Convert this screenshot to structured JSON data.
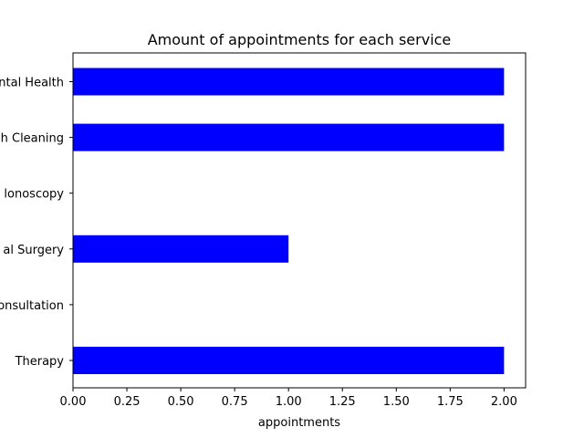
{
  "chart_data": {
    "type": "bar",
    "orientation": "horizontal",
    "title": "Amount of appointments for each service",
    "xlabel": "appointments",
    "ylabel": "",
    "categories": [
      "ental Health",
      "h Cleaning",
      "lonoscopy",
      "al Surgery",
      "onsultation",
      "Therapy"
    ],
    "values": [
      2,
      2,
      0,
      1,
      0,
      2
    ],
    "xlim": [
      0,
      2.1
    ],
    "xticks": [
      "0.00",
      "0.25",
      "0.50",
      "0.75",
      "1.00",
      "1.25",
      "1.50",
      "1.75",
      "2.00"
    ],
    "bar_color": "#0000ff",
    "grid": false,
    "legend": "none"
  }
}
